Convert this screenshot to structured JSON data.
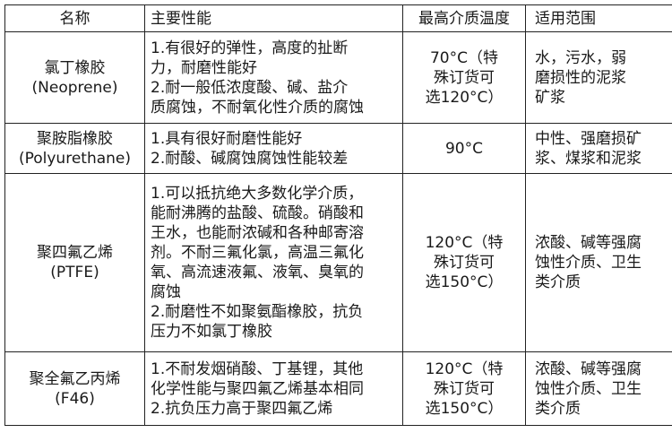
{
  "headers": [
    "名称",
    "主要性能",
    "最高介质温度",
    "适用范围"
  ],
  "rows": [
    {
      "name": "氯丁橡胶\n(Neoprene)",
      "performance": "1.有很好的弹性，高度的扯断\n力，耐磨性能好\n2.耐一般低浓度酸、碱、盐介\n质腐蚀，不耐氧化性介质的腐蚀",
      "max_temp": "70°C（特\n殊订货可\n选120°C）",
      "scope": "水，污水，弱\n磨损性的泥浆\n矿浆"
    },
    {
      "name": "聚胺脂橡胶\n(Polyurethane)",
      "performance": "1.具有很好耐磨性能好\n2.耐酸、碱腐蚀腐蚀性能较差",
      "max_temp": "90°C",
      "scope": "中性、强磨损矿\n浆、煤浆和泥浆"
    },
    {
      "name": "聚四氟乙烯\n(PTFE)",
      "performance": "1.可以抵抗绝大多数化学介质，\n能耐沸腾的盐酸、硫酸。硝酸和\n王水，也能耐浓碱和各种邮寄溶\n剂。不耐三氟化氯，高温三氟化\n氧、高流速液氟、液氧、臭氧的\n腐蚀\n2.耐磨性不如聚氨酯橡胶，抗负\n压力不如氯丁橡胶",
      "max_temp": "120°C（特\n殊订货可\n选150°C）",
      "scope": "浓酸、碱等强腐\n蚀性介质、卫生\n类介质"
    },
    {
      "name": "聚全氟乙丙烯\n(F46)",
      "performance": "1.不耐发烟硝酸、丁基锂，其他\n化学性能与聚四氟乙烯基本相同\n2.抗负压力高于聚四氟乙烯",
      "max_temp": "120°C（特\n殊订货可\n选150°C）",
      "scope": "浓酸、碱等强腐\n蚀性介质、卫生\n类介质"
    }
  ]
}
